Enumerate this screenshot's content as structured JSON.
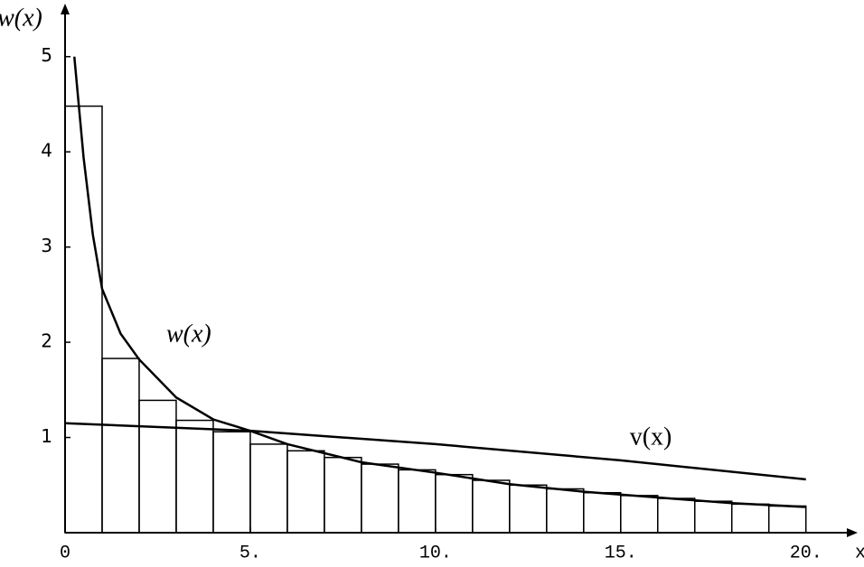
{
  "chart_data": {
    "type": "line",
    "x_label": "x",
    "y_label": "w(x)",
    "xlim": [
      0,
      21.3
    ],
    "ylim": [
      0,
      5.5
    ],
    "xticks": [
      0,
      {
        "value": 5,
        "label": "5."
      },
      {
        "value": 10,
        "label": "10."
      },
      {
        "value": 15,
        "label": "15."
      },
      {
        "value": 20,
        "label": "20."
      }
    ],
    "yticks": [
      1,
      2,
      3,
      4,
      5
    ],
    "color": "#000000",
    "bins": [
      0,
      1,
      2,
      3,
      4,
      5,
      6,
      7,
      8,
      9,
      10,
      11,
      12,
      13,
      14,
      15,
      16,
      17,
      18,
      19,
      20
    ],
    "counts": [
      4.48,
      1.83,
      1.39,
      1.18,
      1.06,
      0.93,
      0.86,
      0.79,
      0.72,
      0.66,
      0.61,
      0.55,
      0.5,
      0.46,
      0.42,
      0.39,
      0.36,
      0.33,
      0.3,
      0.28
    ],
    "series": [
      {
        "name": "w(x)",
        "color": "#000000",
        "x": [
          0.25,
          0.5,
          0.75,
          1,
          1.5,
          2,
          3,
          4,
          5,
          6,
          8,
          10,
          12,
          14,
          16,
          18,
          20
        ],
        "values": [
          5.0,
          3.94,
          3.13,
          2.56,
          2.09,
          1.82,
          1.42,
          1.19,
          1.07,
          0.93,
          0.74,
          0.63,
          0.51,
          0.43,
          0.37,
          0.31,
          0.27
        ]
      },
      {
        "name": "v(x)",
        "color": "#000000",
        "x": [
          0,
          5,
          10,
          15,
          20
        ],
        "values": [
          1.15,
          1.07,
          0.93,
          0.76,
          0.56
        ]
      }
    ]
  }
}
